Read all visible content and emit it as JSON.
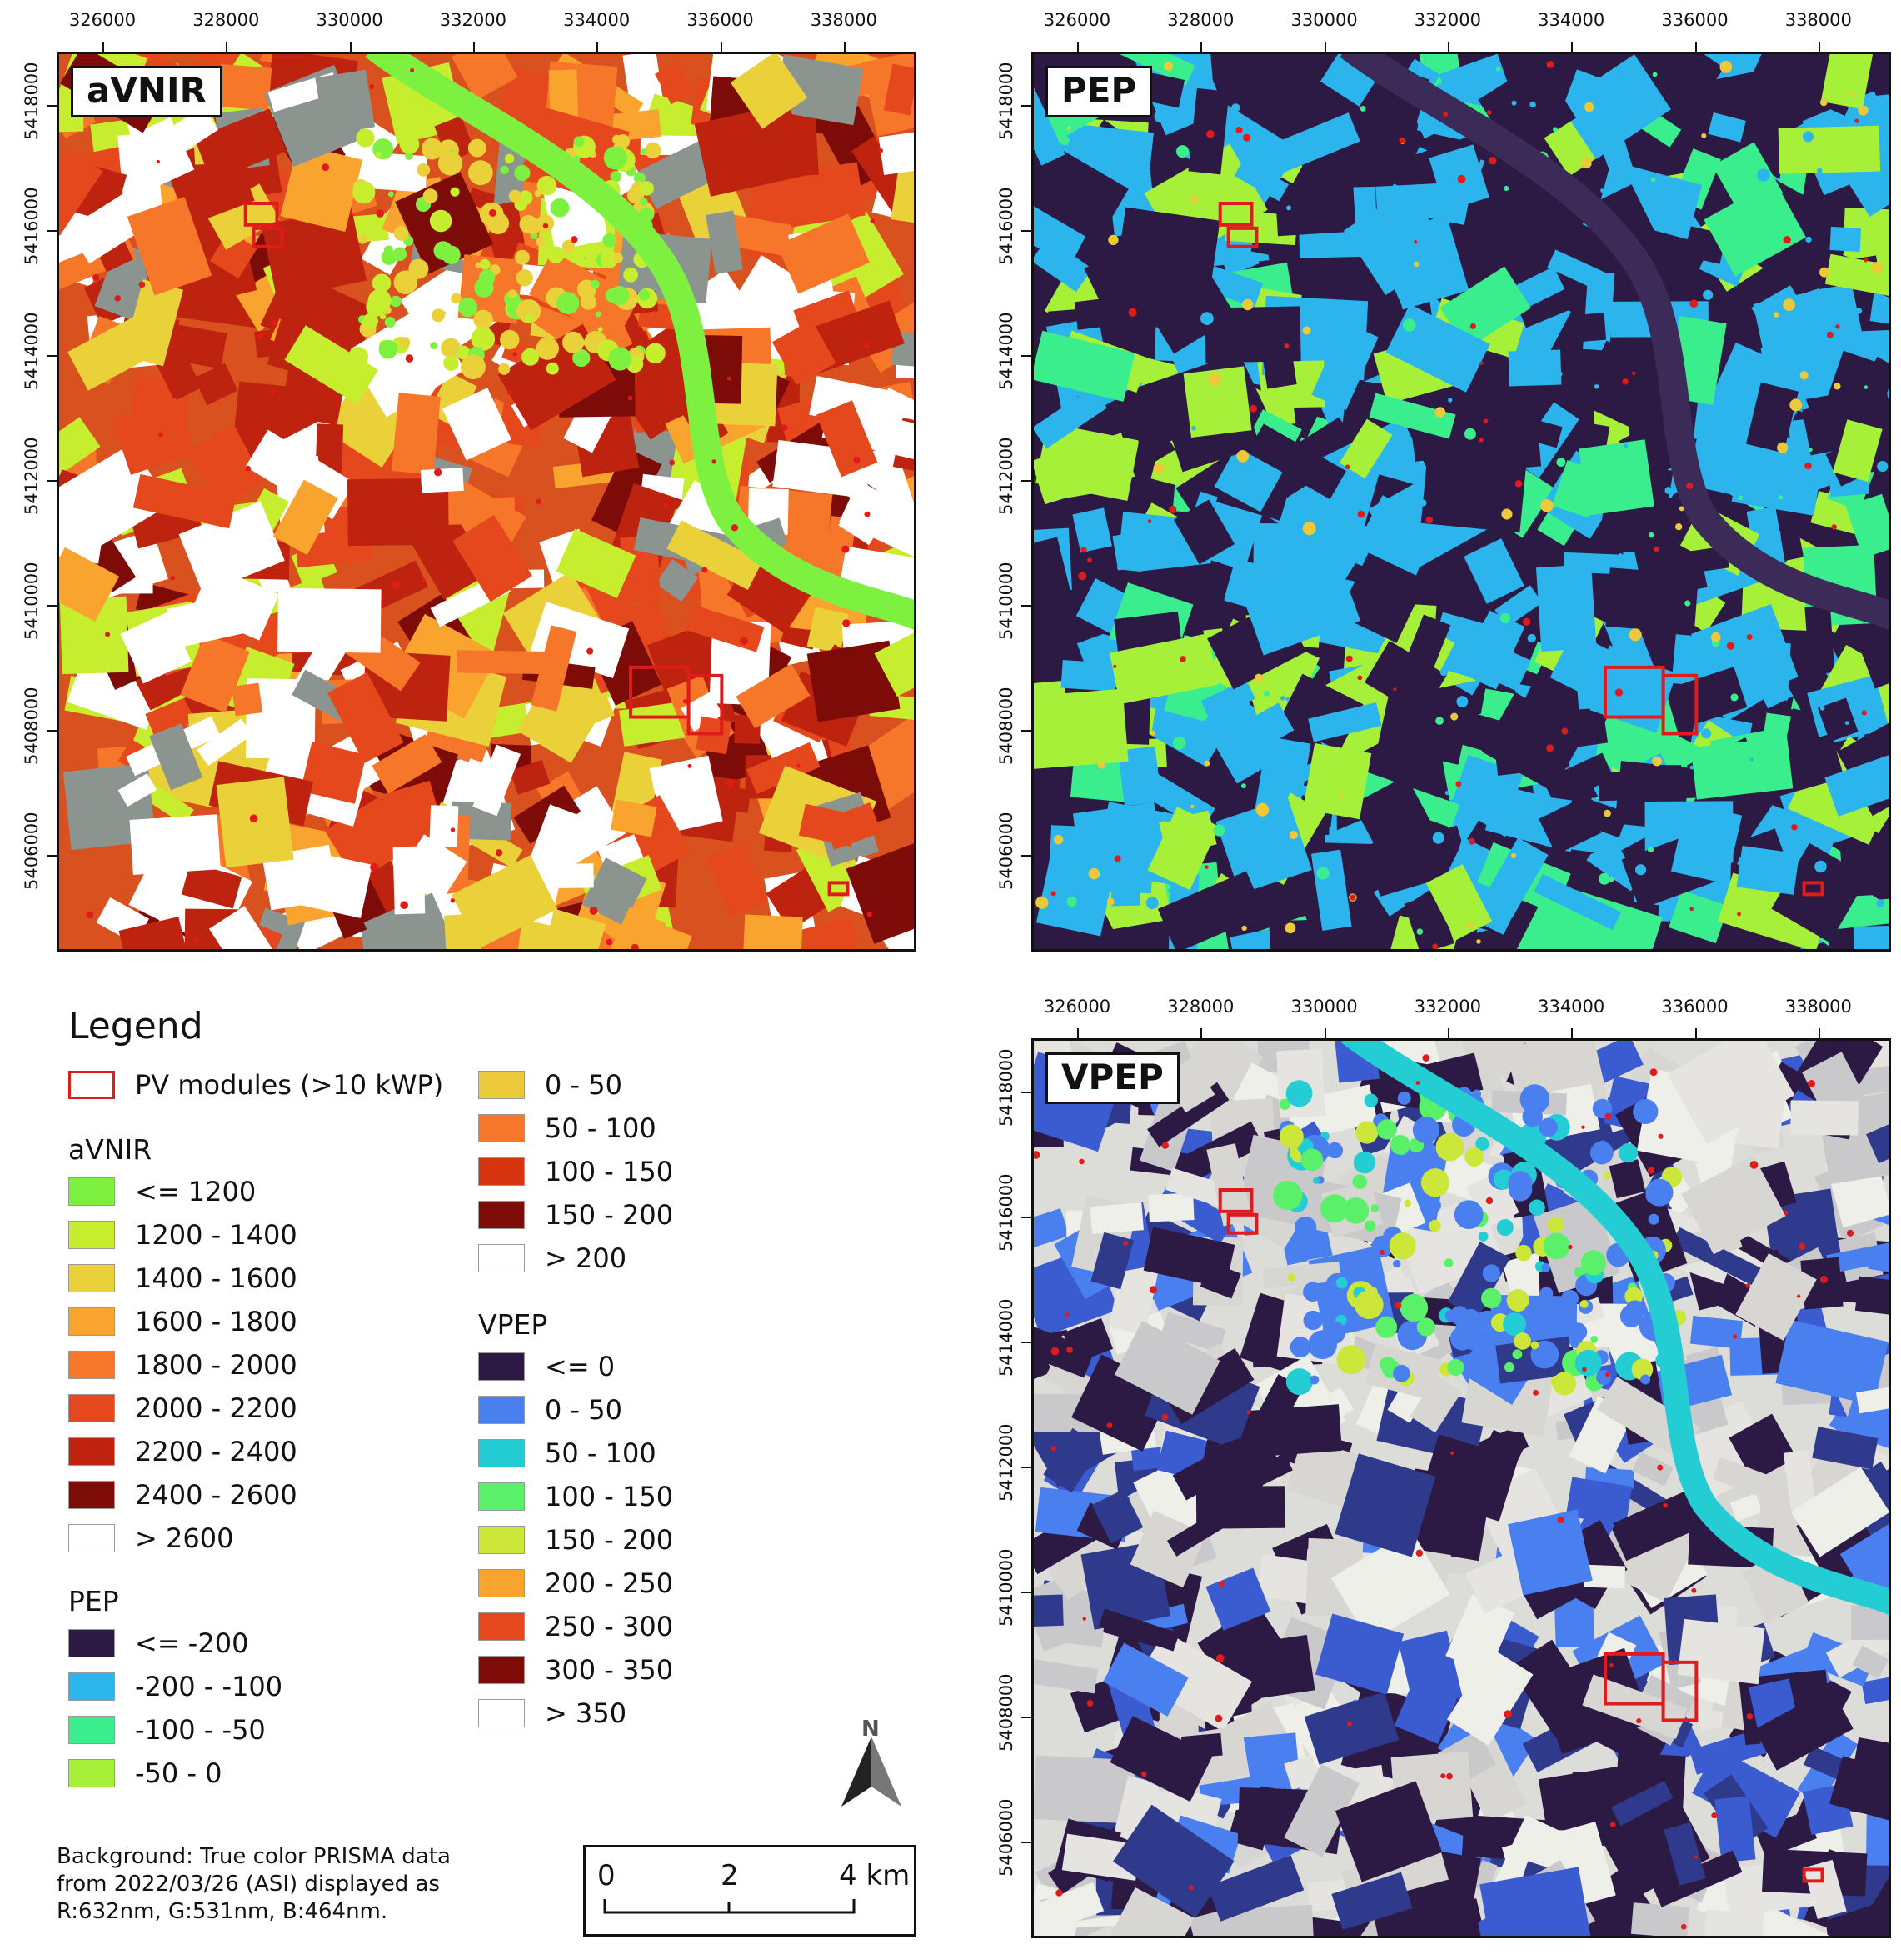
{
  "x_ticks": [
    "326000",
    "328000",
    "330000",
    "332000",
    "334000",
    "336000",
    "338000"
  ],
  "y_ticks": [
    "5418000",
    "5416000",
    "5414000",
    "5412000",
    "5410000",
    "5408000",
    "5406000"
  ],
  "panels": {
    "avnir": {
      "title": "aVNIR"
    },
    "pep": {
      "title": "PEP"
    },
    "vpep": {
      "title": "VPEP"
    }
  },
  "legend": {
    "title": "Legend",
    "pv": {
      "label": "PV modules (>10 kWP)",
      "color": "#e01b1b"
    },
    "avnir": {
      "heading": "aVNIR",
      "classes": [
        {
          "label": "<= 1200",
          "color": "#7ef040"
        },
        {
          "label": "1200 - 1400",
          "color": "#c6ee2e"
        },
        {
          "label": "1400 - 1600",
          "color": "#ead13a"
        },
        {
          "label": "1600 - 1800",
          "color": "#f9a42e"
        },
        {
          "label": "1800 - 2000",
          "color": "#f6772a"
        },
        {
          "label": "2000 - 2200",
          "color": "#e6481e"
        },
        {
          "label": "2200 - 2400",
          "color": "#be230f"
        },
        {
          "label": "2400 - 2600",
          "color": "#7d0c08"
        },
        {
          "label": "> 2600",
          "color": "#ffffff"
        }
      ]
    },
    "pep": {
      "heading": "PEP",
      "classes": [
        {
          "label": "<= -200",
          "color": "#2c1a45"
        },
        {
          "label": "-200 - -100",
          "color": "#2cb4ec"
        },
        {
          "label": "-100 - -50",
          "color": "#3aee8e"
        },
        {
          "label": "-50 - 0",
          "color": "#a6f03a"
        },
        {
          "label": "0 - 50",
          "color": "#ecc93a"
        },
        {
          "label": "50 - 100",
          "color": "#f6772a"
        },
        {
          "label": "100 - 150",
          "color": "#d73410"
        },
        {
          "label": "150 - 200",
          "color": "#7d0c08"
        },
        {
          "label": "> 200",
          "color": "#ffffff"
        }
      ]
    },
    "vpep": {
      "heading": "VPEP",
      "classes": [
        {
          "label": "<= 0",
          "color": "#2c1a45"
        },
        {
          "label": "0 - 50",
          "color": "#4a7ff0"
        },
        {
          "label": "50 - 100",
          "color": "#23cdd3"
        },
        {
          "label": "100 - 150",
          "color": "#5af06a"
        },
        {
          "label": "150 - 200",
          "color": "#cde63a"
        },
        {
          "label": "200 - 250",
          "color": "#f9a42e"
        },
        {
          "label": "250 - 300",
          "color": "#e6481e"
        },
        {
          "label": "300 - 350",
          "color": "#7d0c08"
        },
        {
          "label": "> 350",
          "color": "#ffffff"
        }
      ]
    }
  },
  "north_label": "N",
  "scalebar": {
    "l0": "0",
    "l1": "2",
    "l2": "4 km"
  },
  "credit": "Background: True color PRISMA data from 2022/03/26 (ASI) displayed as R:632nm, G:531nm, B:464nm."
}
